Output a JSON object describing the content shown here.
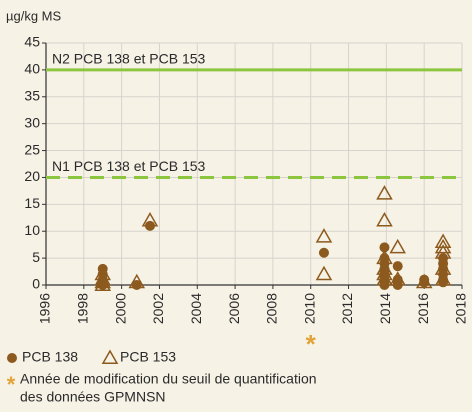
{
  "chart_data": {
    "type": "scatter",
    "y_label": "µg/kg MS",
    "xlim": [
      1996,
      2018
    ],
    "xticks": [
      1996,
      1998,
      2000,
      2002,
      2004,
      2006,
      2008,
      2010,
      2012,
      2014,
      2016,
      2018
    ],
    "ylim": [
      0,
      45
    ],
    "yticks": [
      0,
      5,
      10,
      15,
      20,
      25,
      30,
      35,
      40,
      45
    ],
    "grid": true,
    "reference_lines": [
      {
        "value": 40,
        "label": "N2 PCB 138 et PCB 153",
        "style": "solid",
        "color": "#8cc63e"
      },
      {
        "value": 20,
        "label": "N1 PCB 138 et PCB 153",
        "style": "dashed",
        "color": "#8cc63e"
      }
    ],
    "series": [
      {
        "name": "PCB 138",
        "color": "#8c5a1e",
        "marker": "circle",
        "x": [
          1999,
          1999,
          1999,
          1999,
          1999,
          2000.8,
          2001.5,
          2010.7,
          2013.9,
          2013.9,
          2013.9,
          2013.9,
          2013.9,
          2013.9,
          2013.9,
          2013.9,
          2013.9,
          2013.9,
          2014.6,
          2014.6,
          2014.6,
          2014.6,
          2016,
          2016,
          2017,
          2017,
          2017,
          2017,
          2017,
          2017
        ],
        "values": [
          3,
          2,
          1,
          0.5,
          0,
          0,
          11,
          6,
          7,
          5,
          4,
          3,
          2.5,
          2,
          1.5,
          1,
          0.5,
          0,
          3.5,
          1,
          0.5,
          0,
          1,
          0.5,
          5,
          4,
          3,
          2,
          1,
          0.5
        ]
      },
      {
        "name": "PCB 153",
        "color": "#8c5a1e",
        "marker": "triangle",
        "x": [
          1999,
          1999,
          1999,
          1999,
          2000.8,
          2001.5,
          2010.7,
          2010.7,
          2013.9,
          2013.9,
          2013.9,
          2013.9,
          2013.9,
          2013.9,
          2014.6,
          2014.6,
          2016,
          2017,
          2017,
          2017,
          2017,
          2017
        ],
        "values": [
          2,
          1,
          0.5,
          0,
          0.5,
          12,
          9,
          2,
          17,
          12,
          5,
          3,
          2,
          1,
          7,
          1,
          0.5,
          8,
          7,
          6,
          3,
          1
        ]
      }
    ],
    "annotation": {
      "x": 2010,
      "symbol": "*",
      "color": "#e2a33a",
      "lines": [
        "Année de modification du seuil de quantification",
        "des données GPMNSN"
      ]
    }
  }
}
